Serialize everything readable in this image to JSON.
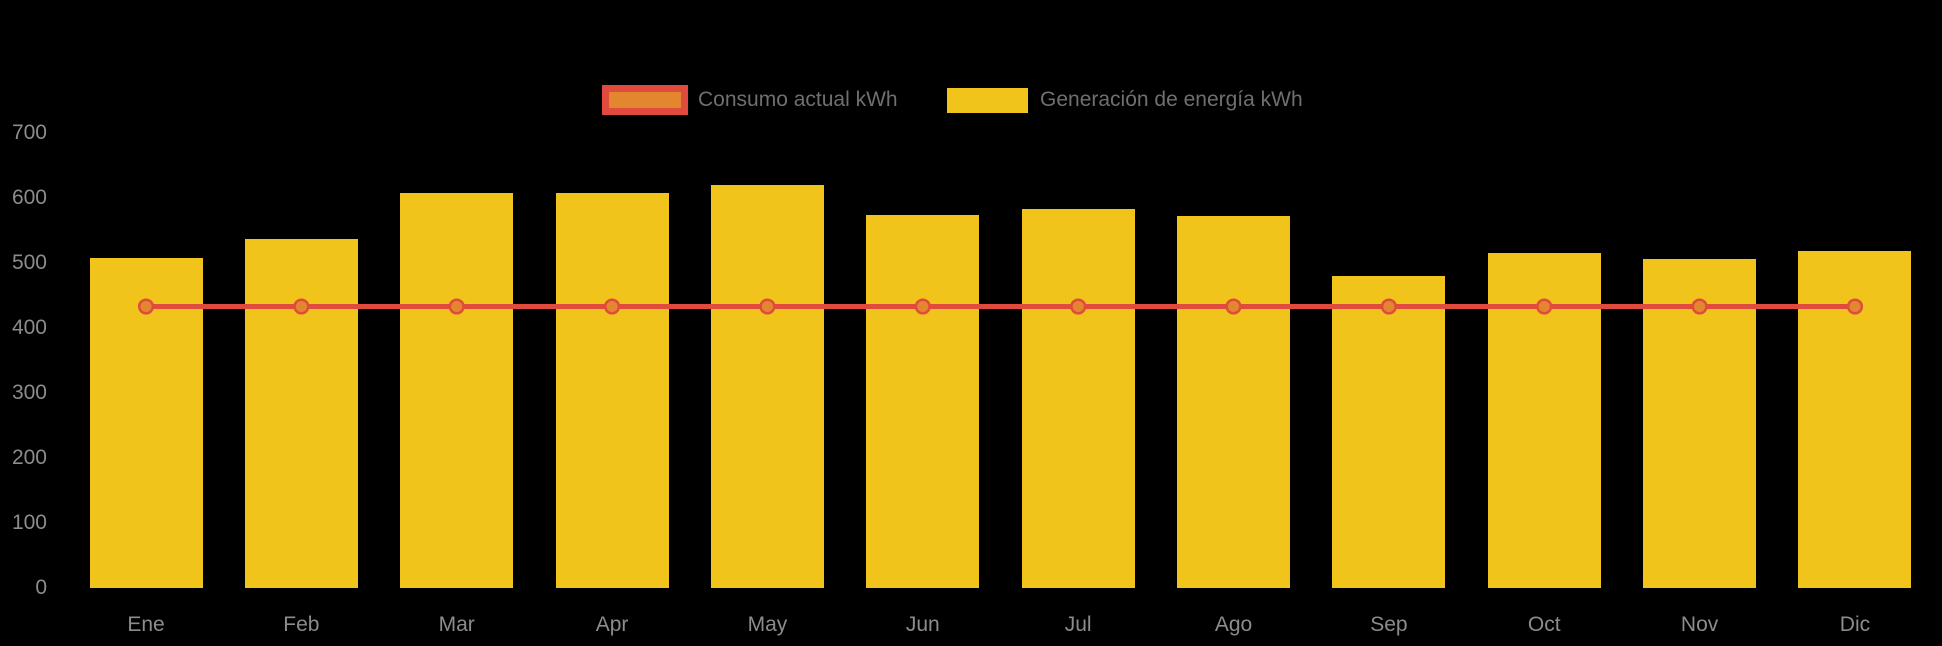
{
  "background_color": "#000000",
  "legend": {
    "items": [
      {
        "label": "Consumo actual kWh",
        "swatch_fill": "#E2872F",
        "swatch_border": "#E04B3E",
        "type": "line"
      },
      {
        "label": "Generación de energía kWh",
        "swatch_fill": "#F0C41B",
        "type": "bar"
      }
    ]
  },
  "chart_data": {
    "type": "bar",
    "title": "",
    "xlabel": "",
    "ylabel": "",
    "categories": [
      "Ene",
      "Feb",
      "Mar",
      "Apr",
      "May",
      "Jun",
      "Jul",
      "Ago",
      "Sep",
      "Oct",
      "Nov",
      "Dic"
    ],
    "series": [
      {
        "name": "Consumo actual kWh",
        "type": "line",
        "color": "#E04B3E",
        "marker_color": "#E2872F",
        "values": [
          433,
          433,
          433,
          433,
          433,
          433,
          433,
          433,
          433,
          433,
          433,
          433
        ]
      },
      {
        "name": "Generación de energía kWh",
        "type": "bar",
        "color": "#F0C41B",
        "values": [
          507,
          537,
          607,
          607,
          619,
          573,
          583,
          572,
          480,
          515,
          506,
          519
        ]
      }
    ],
    "y_ticks": [
      0,
      100,
      200,
      300,
      400,
      500,
      600,
      700
    ],
    "ylim": [
      0,
      700
    ],
    "grid": false,
    "legend_position": "top-center",
    "axis_tick_color": "#8c8c8c",
    "legend_text_color": "#6f6f6f"
  }
}
